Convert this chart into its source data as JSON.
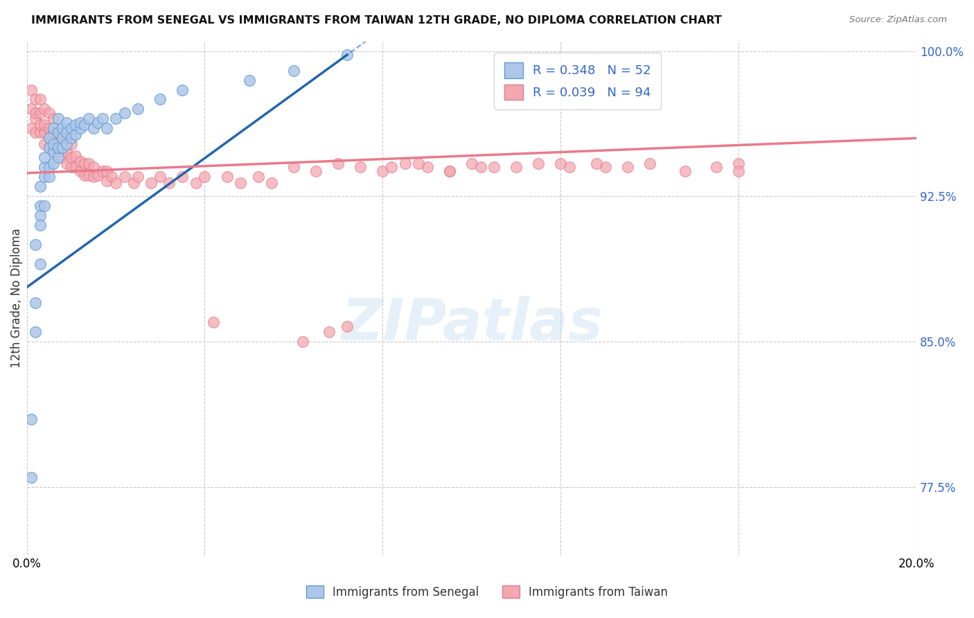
{
  "title": "IMMIGRANTS FROM SENEGAL VS IMMIGRANTS FROM TAIWAN 12TH GRADE, NO DIPLOMA CORRELATION CHART",
  "source": "Source: ZipAtlas.com",
  "ylabel": "12th Grade, No Diploma",
  "xlim": [
    0.0,
    0.2
  ],
  "ylim": [
    0.74,
    1.005
  ],
  "xticks": [
    0.0,
    0.04,
    0.08,
    0.12,
    0.16,
    0.2
  ],
  "xticklabels": [
    "0.0%",
    "",
    "",
    "",
    "",
    "20.0%"
  ],
  "yticks_right": [
    1.0,
    0.925,
    0.85,
    0.775
  ],
  "ytick_right_labels": [
    "100.0%",
    "92.5%",
    "85.0%",
    "77.5%"
  ],
  "grid_color": "#c8c8c8",
  "background_color": "#ffffff",
  "senegal_color": "#aec6e8",
  "taiwan_color": "#f4a7b0",
  "senegal_edge": "#5b9bd5",
  "taiwan_edge": "#e07a8a",
  "line_senegal_color": "#2166ac",
  "line_taiwan_color": "#e87a8a",
  "R_senegal": 0.348,
  "N_senegal": 52,
  "R_taiwan": 0.039,
  "N_taiwan": 94,
  "legend_text_color": "#3366cc",
  "senegal_line_x0": 0.0,
  "senegal_line_y0": 0.878,
  "senegal_line_x1": 0.072,
  "senegal_line_y1": 0.998,
  "taiwan_line_x0": 0.0,
  "taiwan_line_y0": 0.937,
  "taiwan_line_x1": 0.2,
  "taiwan_line_y1": 0.955,
  "senegal_x": [
    0.001,
    0.001,
    0.002,
    0.002,
    0.002,
    0.003,
    0.003,
    0.003,
    0.003,
    0.003,
    0.004,
    0.004,
    0.004,
    0.004,
    0.005,
    0.005,
    0.005,
    0.005,
    0.006,
    0.006,
    0.006,
    0.006,
    0.007,
    0.007,
    0.007,
    0.007,
    0.008,
    0.008,
    0.008,
    0.009,
    0.009,
    0.009,
    0.01,
    0.01,
    0.011,
    0.011,
    0.012,
    0.012,
    0.013,
    0.014,
    0.015,
    0.016,
    0.017,
    0.018,
    0.02,
    0.022,
    0.025,
    0.03,
    0.035,
    0.05,
    0.06,
    0.072
  ],
  "senegal_y": [
    0.81,
    0.78,
    0.87,
    0.855,
    0.9,
    0.915,
    0.92,
    0.93,
    0.91,
    0.89,
    0.935,
    0.94,
    0.92,
    0.945,
    0.935,
    0.94,
    0.95,
    0.955,
    0.942,
    0.948,
    0.952,
    0.96,
    0.945,
    0.95,
    0.958,
    0.965,
    0.95,
    0.955,
    0.96,
    0.952,
    0.958,
    0.963,
    0.955,
    0.96,
    0.957,
    0.962,
    0.96,
    0.963,
    0.962,
    0.965,
    0.96,
    0.963,
    0.965,
    0.96,
    0.965,
    0.968,
    0.97,
    0.975,
    0.98,
    0.985,
    0.99,
    0.998
  ],
  "taiwan_x": [
    0.001,
    0.001,
    0.001,
    0.002,
    0.002,
    0.002,
    0.002,
    0.003,
    0.003,
    0.003,
    0.003,
    0.004,
    0.004,
    0.004,
    0.004,
    0.005,
    0.005,
    0.005,
    0.005,
    0.006,
    0.006,
    0.006,
    0.006,
    0.007,
    0.007,
    0.007,
    0.008,
    0.008,
    0.008,
    0.009,
    0.009,
    0.009,
    0.01,
    0.01,
    0.01,
    0.011,
    0.011,
    0.012,
    0.012,
    0.013,
    0.013,
    0.014,
    0.014,
    0.015,
    0.015,
    0.016,
    0.017,
    0.018,
    0.018,
    0.019,
    0.02,
    0.022,
    0.024,
    0.025,
    0.028,
    0.03,
    0.032,
    0.035,
    0.038,
    0.04,
    0.042,
    0.045,
    0.048,
    0.052,
    0.055,
    0.06,
    0.065,
    0.07,
    0.075,
    0.08,
    0.085,
    0.09,
    0.095,
    0.1,
    0.11,
    0.12,
    0.13,
    0.14,
    0.148,
    0.155,
    0.16,
    0.105,
    0.062,
    0.068,
    0.072,
    0.082,
    0.088,
    0.095,
    0.102,
    0.115,
    0.122,
    0.128,
    0.135,
    0.16
  ],
  "taiwan_y": [
    0.96,
    0.97,
    0.98,
    0.965,
    0.958,
    0.968,
    0.975,
    0.958,
    0.962,
    0.968,
    0.975,
    0.952,
    0.958,
    0.962,
    0.97,
    0.95,
    0.955,
    0.96,
    0.968,
    0.948,
    0.953,
    0.958,
    0.965,
    0.948,
    0.952,
    0.958,
    0.945,
    0.95,
    0.956,
    0.942,
    0.948,
    0.955,
    0.94,
    0.945,
    0.952,
    0.94,
    0.946,
    0.938,
    0.943,
    0.936,
    0.942,
    0.936,
    0.942,
    0.935,
    0.94,
    0.936,
    0.938,
    0.933,
    0.938,
    0.935,
    0.932,
    0.935,
    0.932,
    0.935,
    0.932,
    0.935,
    0.932,
    0.935,
    0.932,
    0.935,
    0.86,
    0.935,
    0.932,
    0.935,
    0.932,
    0.94,
    0.938,
    0.942,
    0.94,
    0.938,
    0.942,
    0.94,
    0.938,
    0.942,
    0.94,
    0.942,
    0.94,
    0.942,
    0.938,
    0.94,
    0.942,
    0.94,
    0.85,
    0.855,
    0.858,
    0.94,
    0.942,
    0.938,
    0.94,
    0.942,
    0.94,
    0.942,
    0.94,
    0.938
  ]
}
